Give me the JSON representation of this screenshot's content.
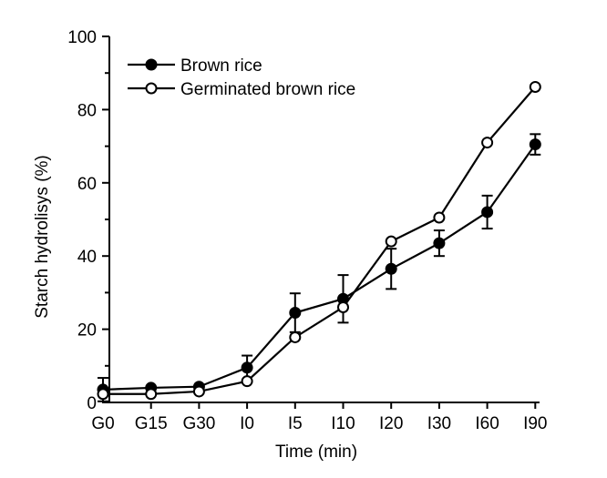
{
  "chart_data": {
    "type": "line",
    "xlabel": "Time (min)",
    "ylabel": "Starch hydrolisys (%)",
    "categories": [
      "G0",
      "G15",
      "G30",
      "I0",
      "I5",
      "I10",
      "I20",
      "I30",
      "I60",
      "I90"
    ],
    "ylim": [
      0,
      100
    ],
    "yticks": [
      0,
      20,
      40,
      60,
      80,
      100
    ],
    "grid": false,
    "legend_position": "top-left",
    "series": [
      {
        "name": "Brown rice",
        "marker": "filled-circle",
        "values": [
          3.5,
          4.0,
          4.3,
          9.5,
          24.5,
          28.3,
          36.5,
          43.5,
          52.0,
          70.5
        ],
        "errors": [
          3.2,
          0.4,
          0.4,
          3.3,
          5.3,
          6.5,
          5.5,
          3.5,
          4.5,
          2.8
        ]
      },
      {
        "name": "Germinated brown rice",
        "marker": "open-circle",
        "values": [
          2.3,
          2.3,
          3.0,
          5.8,
          17.8,
          26.0,
          44.0,
          50.5,
          71.0,
          86.2
        ],
        "errors": [
          0.3,
          0.3,
          0.3,
          0.4,
          0.5,
          0.5,
          0.5,
          0.5,
          0.5,
          0.5
        ]
      }
    ]
  }
}
